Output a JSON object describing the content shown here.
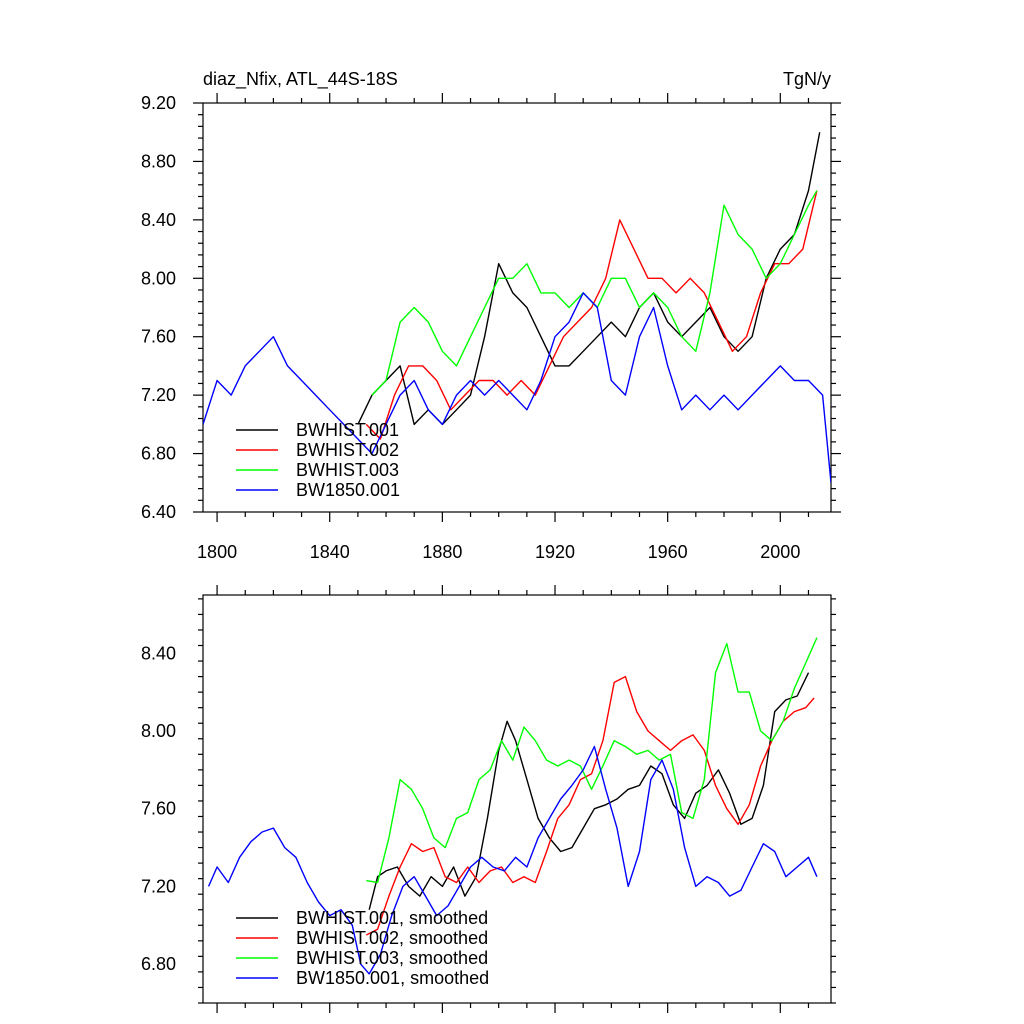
{
  "chart_data": [
    {
      "type": "line",
      "title_left": "diaz_Nfix, ATL_44S-18S",
      "title_right": "TgN/y",
      "xlim": [
        1795,
        2018
      ],
      "ylim": [
        6.4,
        9.2
      ],
      "xticks": [
        1800,
        1840,
        1880,
        1920,
        1960,
        2000
      ],
      "xtick_labels": [
        "1800",
        "1840",
        "1880",
        "1920",
        "1960",
        "2000"
      ],
      "yticks": [
        6.4,
        6.8,
        7.2,
        7.6,
        8.0,
        8.4,
        8.8,
        9.2
      ],
      "ytick_labels": [
        "6.40",
        "6.80",
        "7.20",
        "7.60",
        "8.00",
        "8.40",
        "8.80",
        "9.20"
      ],
      "legend_position": "bottom-left",
      "series": [
        {
          "name": "BWHIST.001",
          "color": "#000000",
          "x": [
            1850,
            1855,
            1860,
            1865,
            1870,
            1875,
            1880,
            1885,
            1890,
            1895,
            1900,
            1905,
            1910,
            1915,
            1920,
            1925,
            1930,
            1935,
            1940,
            1945,
            1950,
            1955,
            1960,
            1965,
            1970,
            1975,
            1980,
            1985,
            1990,
            1995,
            2000,
            2005,
            2010,
            2014
          ],
          "y": [
            7.0,
            7.2,
            7.3,
            7.4,
            7.0,
            7.1,
            7.0,
            7.1,
            7.2,
            7.6,
            8.1,
            7.9,
            7.8,
            7.6,
            7.4,
            7.4,
            7.5,
            7.6,
            7.7,
            7.6,
            7.8,
            7.9,
            7.7,
            7.6,
            7.7,
            7.8,
            7.6,
            7.5,
            7.6,
            8.0,
            8.2,
            8.3,
            8.6,
            9.0
          ]
        },
        {
          "name": "BWHIST.002",
          "color": "#ff0000",
          "x": [
            1853,
            1858,
            1863,
            1868,
            1873,
            1878,
            1883,
            1888,
            1893,
            1898,
            1903,
            1908,
            1913,
            1918,
            1923,
            1928,
            1933,
            1938,
            1943,
            1948,
            1953,
            1958,
            1963,
            1968,
            1973,
            1978,
            1983,
            1988,
            1993,
            1998,
            2003,
            2008,
            2013
          ],
          "y": [
            7.0,
            6.9,
            7.2,
            7.4,
            7.4,
            7.3,
            7.1,
            7.2,
            7.3,
            7.3,
            7.2,
            7.3,
            7.2,
            7.4,
            7.6,
            7.7,
            7.8,
            8.0,
            8.4,
            8.2,
            8.0,
            8.0,
            7.9,
            8.0,
            7.9,
            7.7,
            7.5,
            7.6,
            7.9,
            8.1,
            8.1,
            8.2,
            8.6
          ]
        },
        {
          "name": "BWHIST.003",
          "color": "#00ff00",
          "x": [
            1855,
            1860,
            1865,
            1870,
            1875,
            1880,
            1885,
            1890,
            1895,
            1900,
            1905,
            1910,
            1915,
            1920,
            1925,
            1930,
            1935,
            1940,
            1945,
            1950,
            1955,
            1960,
            1965,
            1970,
            1975,
            1980,
            1985,
            1990,
            1995,
            2000,
            2005,
            2010,
            2013
          ],
          "y": [
            7.2,
            7.3,
            7.7,
            7.8,
            7.7,
            7.5,
            7.4,
            7.6,
            7.8,
            8.0,
            8.0,
            8.1,
            7.9,
            7.9,
            7.8,
            7.9,
            7.8,
            8.0,
            8.0,
            7.8,
            7.9,
            7.8,
            7.6,
            7.5,
            7.9,
            8.5,
            8.3,
            8.2,
            8.0,
            8.1,
            8.3,
            8.5,
            8.6
          ]
        },
        {
          "name": "BW1850.001",
          "color": "#0000ff",
          "x": [
            1795,
            1800,
            1805,
            1810,
            1815,
            1820,
            1825,
            1830,
            1835,
            1840,
            1845,
            1850,
            1855,
            1860,
            1865,
            1870,
            1875,
            1880,
            1885,
            1890,
            1895,
            1900,
            1905,
            1910,
            1915,
            1920,
            1925,
            1930,
            1935,
            1940,
            1945,
            1950,
            1955,
            1960,
            1965,
            1970,
            1975,
            1980,
            1985,
            1990,
            1995,
            2000,
            2005,
            2010,
            2015,
            2018
          ],
          "y": [
            7.0,
            7.3,
            7.2,
            7.4,
            7.5,
            7.6,
            7.4,
            7.3,
            7.2,
            7.1,
            7.0,
            6.9,
            6.8,
            7.0,
            7.2,
            7.3,
            7.1,
            7.0,
            7.2,
            7.3,
            7.2,
            7.3,
            7.2,
            7.1,
            7.3,
            7.6,
            7.7,
            7.9,
            7.8,
            7.3,
            7.2,
            7.6,
            7.8,
            7.4,
            7.1,
            7.2,
            7.1,
            7.2,
            7.1,
            7.2,
            7.3,
            7.4,
            7.3,
            7.3,
            7.2,
            6.6
          ]
        }
      ]
    },
    {
      "type": "line",
      "xlim": [
        1795,
        2018
      ],
      "ylim": [
        6.6,
        8.7
      ],
      "xticks": [
        1800,
        1840,
        1880,
        1920,
        1960,
        2000
      ],
      "yticks": [
        6.8,
        7.2,
        7.6,
        8.0,
        8.4
      ],
      "ytick_labels": [
        "6.80",
        "7.20",
        "7.60",
        "8.00",
        "8.40"
      ],
      "legend_position": "bottom-left",
      "series": [
        {
          "name": "BWHIST.001, smoothed",
          "color": "#000000",
          "x": [
            1854,
            1857,
            1860,
            1864,
            1868,
            1872,
            1876,
            1880,
            1884,
            1888,
            1892,
            1896,
            1900,
            1903,
            1906,
            1910,
            1914,
            1918,
            1922,
            1926,
            1930,
            1934,
            1938,
            1942,
            1946,
            1950,
            1954,
            1958,
            1962,
            1966,
            1970,
            1974,
            1978,
            1982,
            1986,
            1990,
            1994,
            1998,
            2002,
            2006,
            2010
          ],
          "y": [
            7.08,
            7.25,
            7.28,
            7.3,
            7.2,
            7.15,
            7.25,
            7.2,
            7.3,
            7.15,
            7.25,
            7.55,
            7.9,
            8.05,
            7.95,
            7.75,
            7.55,
            7.45,
            7.38,
            7.4,
            7.5,
            7.6,
            7.62,
            7.65,
            7.7,
            7.72,
            7.82,
            7.78,
            7.62,
            7.55,
            7.68,
            7.72,
            7.8,
            7.68,
            7.52,
            7.55,
            7.72,
            8.1,
            8.16,
            8.18,
            8.3
          ]
        },
        {
          "name": "BWHIST.002, smoothed",
          "color": "#ff0000",
          "x": [
            1853,
            1857,
            1861,
            1865,
            1869,
            1873,
            1877,
            1881,
            1885,
            1889,
            1893,
            1897,
            1901,
            1905,
            1909,
            1913,
            1917,
            1921,
            1925,
            1929,
            1933,
            1937,
            1941,
            1945,
            1949,
            1953,
            1957,
            1961,
            1965,
            1969,
            1973,
            1977,
            1981,
            1985,
            1989,
            1993,
            1997,
            2001,
            2005,
            2009,
            2012
          ],
          "y": [
            6.95,
            6.98,
            7.15,
            7.3,
            7.42,
            7.38,
            7.4,
            7.25,
            7.22,
            7.3,
            7.22,
            7.28,
            7.3,
            7.22,
            7.25,
            7.22,
            7.38,
            7.55,
            7.62,
            7.75,
            7.78,
            7.95,
            8.25,
            8.28,
            8.1,
            8.0,
            7.95,
            7.9,
            7.95,
            7.98,
            7.9,
            7.72,
            7.6,
            7.52,
            7.62,
            7.82,
            7.95,
            8.05,
            8.1,
            8.12,
            8.17
          ]
        },
        {
          "name": "BWHIST.003, smoothed",
          "color": "#00ff00",
          "x": [
            1853,
            1857,
            1861,
            1865,
            1869,
            1873,
            1877,
            1881,
            1885,
            1889,
            1893,
            1897,
            1901,
            1905,
            1909,
            1913,
            1917,
            1921,
            1925,
            1929,
            1933,
            1937,
            1941,
            1945,
            1949,
            1953,
            1957,
            1961,
            1965,
            1969,
            1973,
            1977,
            1981,
            1985,
            1989,
            1993,
            1997,
            2001,
            2005,
            2009,
            2013
          ],
          "y": [
            7.23,
            7.22,
            7.45,
            7.75,
            7.7,
            7.6,
            7.45,
            7.4,
            7.55,
            7.58,
            7.75,
            7.8,
            7.95,
            7.85,
            8.02,
            7.95,
            7.85,
            7.82,
            7.85,
            7.82,
            7.7,
            7.82,
            7.95,
            7.92,
            7.88,
            7.9,
            7.85,
            7.88,
            7.58,
            7.55,
            7.75,
            8.3,
            8.45,
            8.2,
            8.2,
            8.0,
            7.95,
            8.05,
            8.22,
            8.35,
            8.48
          ]
        },
        {
          "name": "BW1850.001, smoothed",
          "color": "#0000ff",
          "x": [
            1797,
            1800,
            1804,
            1808,
            1812,
            1816,
            1820,
            1824,
            1828,
            1832,
            1836,
            1840,
            1844,
            1848,
            1851,
            1854,
            1858,
            1862,
            1866,
            1870,
            1874,
            1878,
            1882,
            1886,
            1890,
            1894,
            1898,
            1902,
            1906,
            1910,
            1914,
            1918,
            1922,
            1926,
            1930,
            1934,
            1938,
            1942,
            1946,
            1950,
            1954,
            1958,
            1962,
            1966,
            1970,
            1974,
            1978,
            1982,
            1986,
            1990,
            1994,
            1998,
            2002,
            2006,
            2010,
            2013
          ],
          "y": [
            7.2,
            7.3,
            7.22,
            7.35,
            7.43,
            7.48,
            7.5,
            7.4,
            7.35,
            7.22,
            7.12,
            7.05,
            7.08,
            7.0,
            6.8,
            6.75,
            6.85,
            7.05,
            7.2,
            7.25,
            7.15,
            7.05,
            7.1,
            7.2,
            7.3,
            7.35,
            7.3,
            7.28,
            7.35,
            7.3,
            7.45,
            7.55,
            7.65,
            7.72,
            7.8,
            7.92,
            7.7,
            7.5,
            7.2,
            7.38,
            7.75,
            7.85,
            7.7,
            7.4,
            7.2,
            7.25,
            7.22,
            7.15,
            7.18,
            7.3,
            7.42,
            7.38,
            7.25,
            7.3,
            7.35,
            7.25
          ]
        }
      ]
    }
  ]
}
